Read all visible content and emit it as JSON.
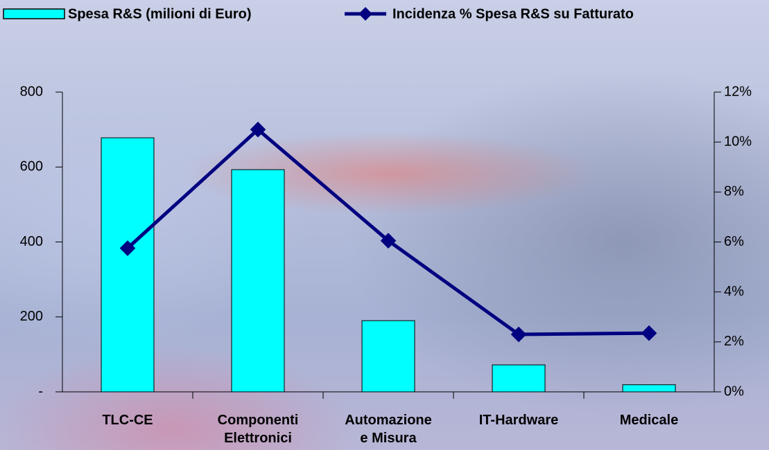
{
  "chart_data": {
    "type": "bar_line",
    "categories": [
      "TLC-CE",
      "Componenti\nElettronici",
      "Automazione\ne Misura",
      "IT-Hardware",
      "Medicale"
    ],
    "series": [
      {
        "name": "Spesa R&S (milioni di Euro)",
        "type": "bar",
        "color": "#00ffff",
        "values": [
          678,
          593,
          190,
          72,
          19
        ]
      },
      {
        "name": "Incidenza % Spesa R&S su Fatturato",
        "type": "line",
        "axis": "y2",
        "color": "#000080",
        "values": [
          5.75,
          10.5,
          6.05,
          2.3,
          2.35
        ]
      }
    ],
    "ylim": [
      0,
      800
    ],
    "yticks": [
      {
        "value": 0,
        "label": "-"
      },
      200,
      400,
      600,
      800
    ],
    "y2lim": [
      0,
      12
    ],
    "y2ticks": [
      {
        "value": 0,
        "label": "0%"
      },
      {
        "value": 2,
        "label": "2%"
      },
      {
        "value": 4,
        "label": "4%"
      },
      {
        "value": 6,
        "label": "6%"
      },
      {
        "value": 8,
        "label": "8%"
      },
      {
        "value": 10,
        "label": "10%"
      },
      {
        "value": 12,
        "label": "12%"
      }
    ],
    "legend": "top"
  }
}
